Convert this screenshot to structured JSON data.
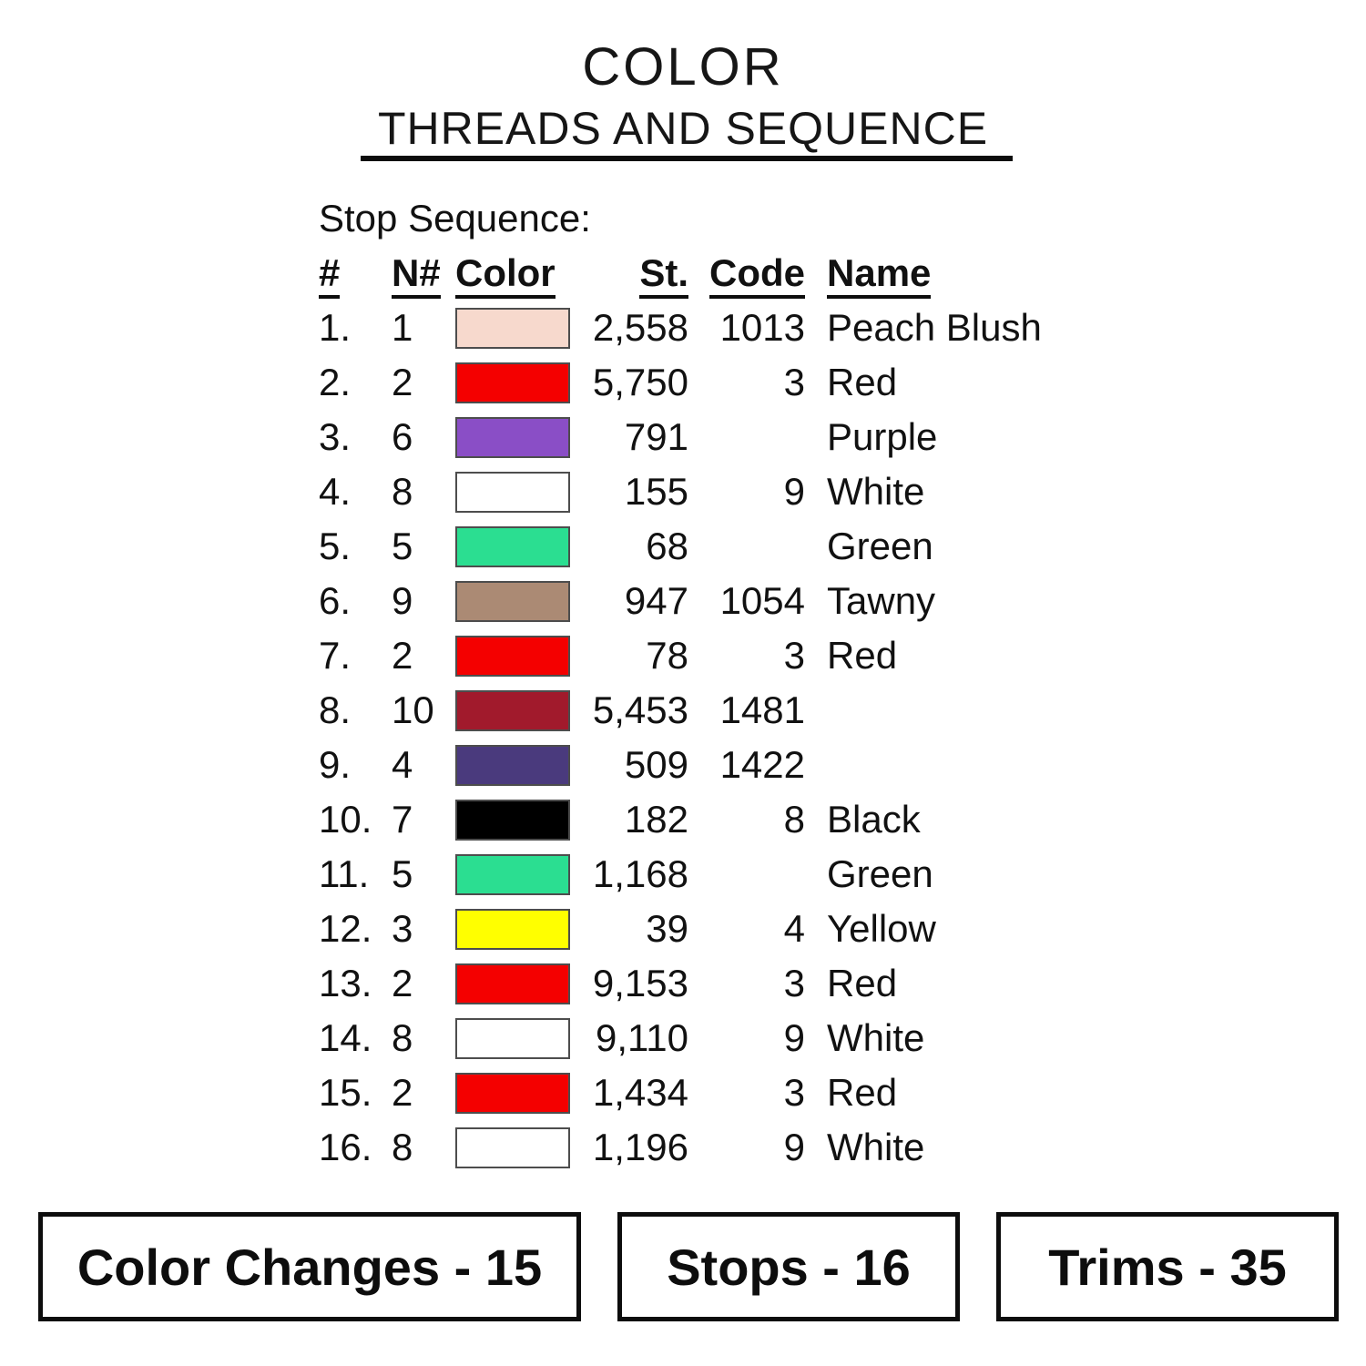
{
  "title": {
    "line1": "COLOR",
    "line2": "THREADS AND SEQUENCE"
  },
  "section_label": "Stop Sequence:",
  "table": {
    "headers": {
      "num": "#",
      "n_num": "N#",
      "color": "Color",
      "stitches": "St.",
      "code": "Code",
      "name": "Name"
    },
    "rows": [
      {
        "num": "1.",
        "n": "1",
        "swatch": "#F7D9CD",
        "st": "2,558",
        "code": "1013",
        "name": "Peach Blush"
      },
      {
        "num": "2.",
        "n": "2",
        "swatch": "#F40000",
        "st": "5,750",
        "code": "3",
        "name": "Red"
      },
      {
        "num": "3.",
        "n": "6",
        "swatch": "#8A4EC6",
        "st": "791",
        "code": "",
        "name": "Purple"
      },
      {
        "num": "4.",
        "n": "8",
        "swatch": "#FFFFFF",
        "st": "155",
        "code": "9",
        "name": "White"
      },
      {
        "num": "5.",
        "n": "5",
        "swatch": "#2BDE91",
        "st": "68",
        "code": "",
        "name": "Green"
      },
      {
        "num": "6.",
        "n": "9",
        "swatch": "#AB8A74",
        "st": "947",
        "code": "1054",
        "name": "Tawny"
      },
      {
        "num": "7.",
        "n": "2",
        "swatch": "#F40000",
        "st": "78",
        "code": "3",
        "name": "Red"
      },
      {
        "num": "8.",
        "n": "10",
        "swatch": "#A11A2C",
        "st": "5,453",
        "code": "1481",
        "name": ""
      },
      {
        "num": "9.",
        "n": "4",
        "swatch": "#4A3A7D",
        "st": "509",
        "code": "1422",
        "name": ""
      },
      {
        "num": "10.",
        "n": "7",
        "swatch": "#000000",
        "st": "182",
        "code": "8",
        "name": "Black"
      },
      {
        "num": "11.",
        "n": "5",
        "swatch": "#2BDE91",
        "st": "1,168",
        "code": "",
        "name": "Green"
      },
      {
        "num": "12.",
        "n": "3",
        "swatch": "#FFFF00",
        "st": "39",
        "code": "4",
        "name": "Yellow"
      },
      {
        "num": "13.",
        "n": "2",
        "swatch": "#F40000",
        "st": "9,153",
        "code": "3",
        "name": "Red"
      },
      {
        "num": "14.",
        "n": "8",
        "swatch": "#FFFFFF",
        "st": "9,110",
        "code": "9",
        "name": "White"
      },
      {
        "num": "15.",
        "n": "2",
        "swatch": "#F40000",
        "st": "1,434",
        "code": "3",
        "name": "Red"
      },
      {
        "num": "16.",
        "n": "8",
        "swatch": "#FFFFFF",
        "st": "1,196",
        "code": "9",
        "name": "White"
      }
    ]
  },
  "footer": {
    "boxes": [
      {
        "label": "Color Changes - 15"
      },
      {
        "label": "Stops - 16"
      },
      {
        "label": "Trims - 35"
      }
    ]
  },
  "colors": {
    "text": "#111111",
    "rule": "#0d0d0d",
    "swatch_border": "#4d4d4d",
    "background": "#ffffff"
  }
}
